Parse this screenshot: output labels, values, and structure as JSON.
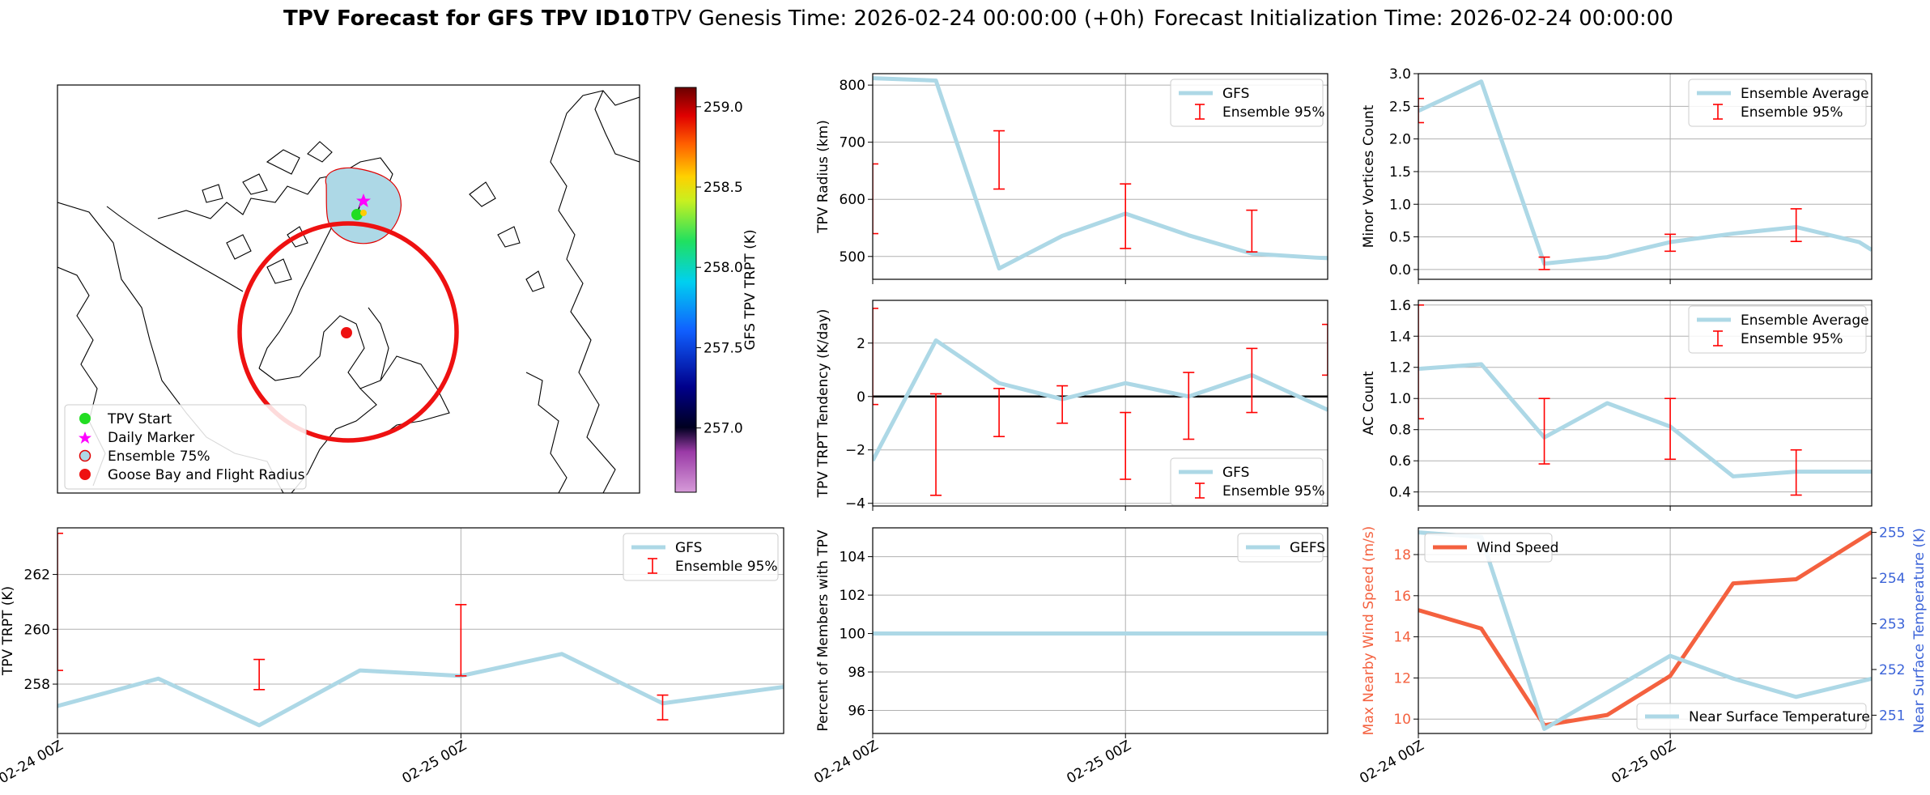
{
  "header": {
    "bold_title": "TPV Forecast for GFS TPV ID10",
    "genesis": "TPV Genesis Time: 2026-02-24 00:00:00 (+0h)",
    "init": "Forecast Initialization Time: 2026-02-24 00:00:00"
  },
  "colors": {
    "gfs_line": "#add8e6",
    "errbar": "#ff0000",
    "wind": "#f4613f",
    "temp_axis": "#3b63d8",
    "land_outline": "#000000"
  },
  "map": {
    "legend": [
      "TPV Start",
      "Daily Marker",
      "Ensemble 75%",
      "Goose Bay and Flight Radius"
    ],
    "colorbar": {
      "label": "GFS TPV TRPT (K)",
      "min": 256.6,
      "max": 259.12,
      "ticks": [
        "257.0",
        "257.5",
        "258.0",
        "258.5",
        "259.0"
      ],
      "tick_values": [
        257.0,
        257.5,
        258.0,
        258.5,
        259.0
      ]
    }
  },
  "chart_data": [
    {
      "id": "radius",
      "type": "line",
      "ylabel": "TPV Radius (km)",
      "ylim": [
        460,
        820
      ],
      "xlim": [
        0,
        1.8
      ],
      "yticks": [
        500,
        600,
        700,
        800
      ],
      "ytick_labels": [
        "500",
        "600",
        "700",
        "800"
      ],
      "legend": [
        "GFS",
        "Ensemble 95%"
      ],
      "legend_pos": "top-right",
      "series": [
        {
          "name": "GFS",
          "x": [
            0,
            0.25,
            0.5,
            0.75,
            1.0,
            1.25,
            1.5,
            1.75,
            1.8
          ],
          "values": [
            812,
            808,
            479,
            536,
            575,
            537,
            505,
            498,
            497
          ]
        }
      ],
      "errorbars": [
        {
          "x": 0,
          "lo": 540,
          "hi": 662
        },
        {
          "x": 0.5,
          "lo": 618,
          "hi": 720
        },
        {
          "x": 1.0,
          "lo": 514,
          "hi": 627
        },
        {
          "x": 1.5,
          "lo": 508,
          "hi": 581
        }
      ]
    },
    {
      "id": "minor",
      "type": "line",
      "ylabel": "Minor Vortices Count",
      "ylim": [
        -0.15,
        3.0
      ],
      "xlim": [
        0,
        1.8
      ],
      "yticks": [
        0.0,
        0.5,
        1.0,
        1.5,
        2.0,
        2.5,
        3.0
      ],
      "ytick_labels": [
        "0.0",
        "0.5",
        "1.0",
        "1.5",
        "2.0",
        "2.5",
        "3.0"
      ],
      "legend": [
        "Ensemble Average",
        "Ensemble 95%"
      ],
      "legend_pos": "top-right",
      "series": [
        {
          "name": "Ensemble Average",
          "x": [
            0,
            0.25,
            0.5,
            0.75,
            1.0,
            1.25,
            1.5,
            1.75,
            1.8
          ],
          "values": [
            2.43,
            2.88,
            0.09,
            0.19,
            0.42,
            0.55,
            0.65,
            0.42,
            0.3
          ]
        }
      ],
      "errorbars": [
        {
          "x": 0,
          "lo": 2.25,
          "hi": 2.62
        },
        {
          "x": 0.5,
          "lo": 0.0,
          "hi": 0.19
        },
        {
          "x": 1.0,
          "lo": 0.28,
          "hi": 0.54
        },
        {
          "x": 1.5,
          "lo": 0.43,
          "hi": 0.93
        }
      ]
    },
    {
      "id": "tendency",
      "type": "line",
      "ylabel": "TPV TRPT Tendency (K/day)",
      "ylim": [
        -4.1,
        3.6
      ],
      "xlim": [
        0,
        1.8
      ],
      "yticks": [
        -4,
        -2,
        0,
        2
      ],
      "ytick_labels": [
        "−4",
        "−2",
        "0",
        "2"
      ],
      "hline": 0,
      "legend": [
        "GFS",
        "Ensemble 95%"
      ],
      "legend_pos": "bottom-right",
      "series": [
        {
          "name": "GFS",
          "x": [
            0,
            0.25,
            0.5,
            0.75,
            1.0,
            1.25,
            1.5,
            1.8
          ],
          "values": [
            -2.4,
            2.1,
            0.5,
            -0.1,
            0.5,
            0.0,
            0.8,
            -0.5
          ]
        }
      ],
      "errorbars": [
        {
          "x": 0,
          "lo": -0.3,
          "hi": 3.3
        },
        {
          "x": 0.25,
          "lo": -3.7,
          "hi": 0.1
        },
        {
          "x": 0.5,
          "lo": -1.5,
          "hi": 0.3
        },
        {
          "x": 0.75,
          "lo": -1.0,
          "hi": 0.4
        },
        {
          "x": 1.0,
          "lo": -3.1,
          "hi": -0.6
        },
        {
          "x": 1.25,
          "lo": -1.6,
          "hi": 0.9
        },
        {
          "x": 1.5,
          "lo": -0.6,
          "hi": 1.8
        },
        {
          "x": 1.8,
          "lo": 0.8,
          "hi": 2.7
        }
      ]
    },
    {
      "id": "ac",
      "type": "line",
      "ylabel": "AC Count",
      "ylim": [
        0.31,
        1.63
      ],
      "xlim": [
        0,
        1.8
      ],
      "yticks": [
        0.4,
        0.6,
        0.8,
        1.0,
        1.2,
        1.4,
        1.6
      ],
      "ytick_labels": [
        "0.4",
        "0.6",
        "0.8",
        "1.0",
        "1.2",
        "1.4",
        "1.6"
      ],
      "legend": [
        "Ensemble Average",
        "Ensemble 95%"
      ],
      "legend_pos": "top-right",
      "series": [
        {
          "name": "Ensemble Average",
          "x": [
            0,
            0.25,
            0.5,
            0.75,
            1.0,
            1.25,
            1.5,
            1.8
          ],
          "values": [
            1.19,
            1.22,
            0.75,
            0.97,
            0.82,
            0.5,
            0.53,
            0.53
          ]
        }
      ],
      "errorbars": [
        {
          "x": 0,
          "lo": 0.87,
          "hi": 1.6
        },
        {
          "x": 0.5,
          "lo": 0.58,
          "hi": 1.0
        },
        {
          "x": 1.0,
          "lo": 0.61,
          "hi": 1.0
        },
        {
          "x": 1.5,
          "lo": 0.38,
          "hi": 0.67
        }
      ]
    },
    {
      "id": "trpt",
      "type": "line",
      "ylabel": "TPV TRPT (K)",
      "ylim": [
        256.2,
        263.7
      ],
      "xlim": [
        0,
        1.8
      ],
      "yticks": [
        258,
        260,
        262
      ],
      "ytick_labels": [
        "258",
        "260",
        "262"
      ],
      "xticks": [
        0,
        1.0
      ],
      "xtick_labels": [
        "02-24 00Z",
        "02-25 00Z"
      ],
      "legend": [
        "GFS",
        "Ensemble 95%"
      ],
      "legend_pos": "top-right",
      "series": [
        {
          "name": "GFS",
          "x": [
            0,
            0.25,
            0.5,
            0.75,
            1.0,
            1.25,
            1.5,
            1.8
          ],
          "values": [
            257.2,
            258.2,
            256.5,
            258.5,
            258.3,
            259.1,
            257.3,
            257.9
          ]
        }
      ],
      "errorbars": [
        {
          "x": 0,
          "lo": 258.5,
          "hi": 263.5
        },
        {
          "x": 0.5,
          "lo": 257.8,
          "hi": 258.9
        },
        {
          "x": 1.0,
          "lo": 258.3,
          "hi": 260.9
        },
        {
          "x": 1.5,
          "lo": 256.7,
          "hi": 257.6
        }
      ]
    },
    {
      "id": "percent",
      "type": "line",
      "ylabel": "Percent of Members with TPV",
      "ylim": [
        94.8,
        105.5
      ],
      "xlim": [
        0,
        1.8
      ],
      "yticks": [
        96,
        98,
        100,
        102,
        104
      ],
      "ytick_labels": [
        "96",
        "98",
        "100",
        "102",
        "104"
      ],
      "xticks": [
        0,
        1.0
      ],
      "xtick_labels": [
        "02-24 00Z",
        "02-25 00Z"
      ],
      "legend": [
        "GEFS"
      ],
      "legend_pos": "top-right",
      "series": [
        {
          "name": "GEFS",
          "x": [
            0,
            1.8
          ],
          "values": [
            100,
            100
          ]
        }
      ]
    },
    {
      "id": "wind",
      "type": "line",
      "ylabel": "Max Nearby Wind Speed (m/s)",
      "ylabel2": "Near Surface Temperature (K)",
      "ylim": [
        9.3,
        19.3
      ],
      "ylim2": [
        250.6,
        255.1
      ],
      "xlim": [
        0,
        1.8
      ],
      "yticks": [
        10,
        12,
        14,
        16,
        18
      ],
      "ytick_labels": [
        "10",
        "12",
        "14",
        "16",
        "18"
      ],
      "yticks2": [
        251,
        252,
        253,
        254,
        255
      ],
      "ytick2_labels": [
        "251",
        "252",
        "253",
        "254",
        "255"
      ],
      "xticks": [
        0,
        1.0
      ],
      "xtick_labels": [
        "02-24 00Z",
        "02-25 00Z"
      ],
      "legend": [
        "Wind Speed"
      ],
      "legend_pos": "top-left",
      "legend2": [
        "Near Surface Temperature"
      ],
      "legend2_pos": "bottom-right",
      "series": [
        {
          "name": "Wind Speed",
          "axis": "left",
          "x": [
            0,
            0.25,
            0.5,
            0.75,
            1.0,
            1.25,
            1.5,
            1.8
          ],
          "values": [
            15.3,
            14.4,
            9.7,
            10.2,
            12.1,
            16.6,
            16.8,
            19.1
          ]
        },
        {
          "name": "Near Surface Temperature",
          "axis": "right",
          "x": [
            0,
            0.25,
            0.5,
            0.75,
            1.0,
            1.25,
            1.5,
            1.8
          ],
          "values": [
            255.0,
            254.9,
            250.7,
            251.5,
            252.3,
            251.8,
            251.4,
            251.8
          ]
        }
      ]
    }
  ]
}
